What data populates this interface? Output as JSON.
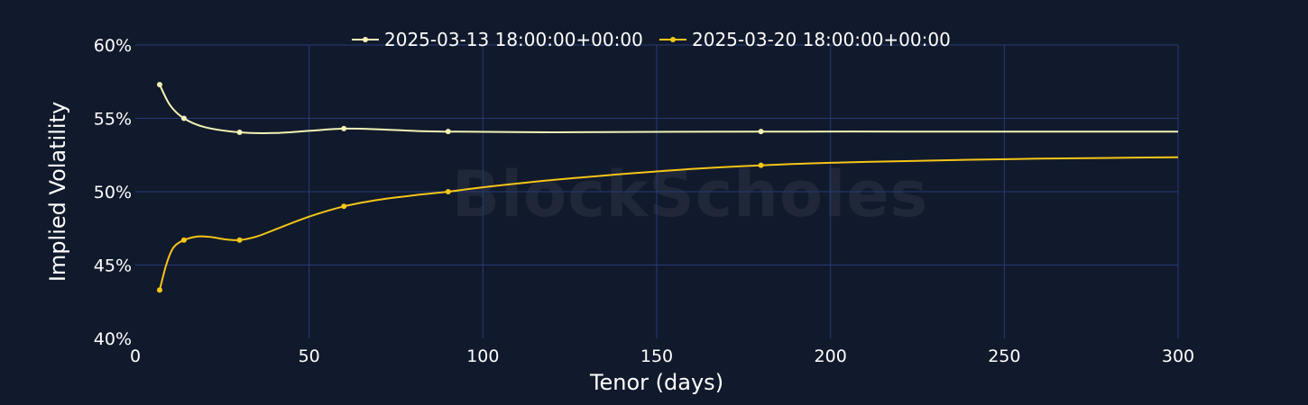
{
  "colors": {
    "background": "#111a2c",
    "grid": "#283a78",
    "text": "#ffffff"
  },
  "watermark": "BlockScholes",
  "chart_data": {
    "type": "line",
    "title": "",
    "xlabel": "Tenor (days)",
    "ylabel": "Implied Volatility",
    "xlim": [
      0,
      300
    ],
    "ylim": [
      40,
      60
    ],
    "x_ticks": [
      0,
      50,
      100,
      150,
      200,
      250,
      300
    ],
    "y_ticks": [
      40,
      45,
      50,
      55,
      60
    ],
    "x_tick_labels": [
      "0",
      "50",
      "100",
      "150",
      "200",
      "250",
      "300"
    ],
    "y_tick_labels": [
      "40%",
      "45%",
      "50%",
      "55%",
      "60%"
    ],
    "grid": true,
    "legend_position": "top-center",
    "series": [
      {
        "name": "2025-03-13 18:00:00+00:00",
        "color": "#f4f3b5",
        "markers": [
          [
            7,
            57.3
          ],
          [
            14,
            55.0
          ],
          [
            30,
            54.05
          ],
          [
            60,
            54.3
          ],
          [
            90,
            54.1
          ],
          [
            180,
            54.1
          ]
        ],
        "curve": [
          [
            7,
            57.3
          ],
          [
            10,
            55.9
          ],
          [
            14,
            55.0
          ],
          [
            20,
            54.4
          ],
          [
            30,
            54.05
          ],
          [
            40,
            54.0
          ],
          [
            50,
            54.15
          ],
          [
            60,
            54.3
          ],
          [
            70,
            54.25
          ],
          [
            80,
            54.15
          ],
          [
            90,
            54.1
          ],
          [
            120,
            54.05
          ],
          [
            150,
            54.08
          ],
          [
            180,
            54.1
          ],
          [
            220,
            54.1
          ],
          [
            260,
            54.1
          ],
          [
            300,
            54.1
          ]
        ]
      },
      {
        "name": "2025-03-20 18:00:00+00:00",
        "color": "#f5c518",
        "markers": [
          [
            7,
            43.3
          ],
          [
            14,
            46.7
          ],
          [
            30,
            46.7
          ],
          [
            60,
            49.0
          ],
          [
            90,
            50.0
          ],
          [
            180,
            51.8
          ]
        ],
        "curve": [
          [
            7,
            43.3
          ],
          [
            9,
            45.1
          ],
          [
            11,
            46.2
          ],
          [
            14,
            46.7
          ],
          [
            18,
            46.95
          ],
          [
            22,
            46.9
          ],
          [
            26,
            46.75
          ],
          [
            30,
            46.7
          ],
          [
            35,
            46.95
          ],
          [
            40,
            47.4
          ],
          [
            50,
            48.3
          ],
          [
            60,
            49.0
          ],
          [
            70,
            49.45
          ],
          [
            80,
            49.75
          ],
          [
            90,
            50.0
          ],
          [
            100,
            50.3
          ],
          [
            120,
            50.8
          ],
          [
            140,
            51.2
          ],
          [
            160,
            51.55
          ],
          [
            180,
            51.8
          ],
          [
            200,
            51.97
          ],
          [
            220,
            52.08
          ],
          [
            240,
            52.18
          ],
          [
            260,
            52.25
          ],
          [
            280,
            52.3
          ],
          [
            300,
            52.35
          ]
        ]
      }
    ]
  }
}
